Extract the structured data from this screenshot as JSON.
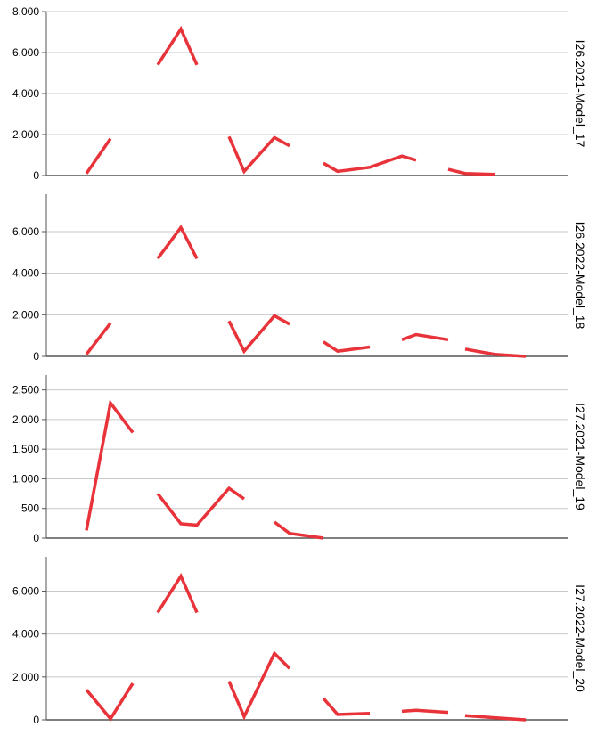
{
  "chart_data": {
    "type": "line",
    "line_color": "#e8333a",
    "grid": true,
    "panels": [
      {
        "label": "I26.2021-Model_17",
        "ylim": [
          0,
          8000
        ],
        "yticks": [
          0,
          2000,
          4000,
          6000,
          8000
        ],
        "tick_labels": [
          "0",
          "2,000",
          "4,000",
          "6,000",
          "8,000"
        ],
        "segments": [
          [
            [
              0,
              100
            ],
            [
              1,
              1800
            ]
          ],
          [
            [
              3,
              5400
            ],
            [
              4,
              7150
            ],
            [
              5,
              5400
            ]
          ],
          [
            [
              6,
              1900
            ],
            [
              7,
              200
            ],
            [
              8,
              1850
            ],
            [
              9,
              1450
            ]
          ],
          [
            [
              10,
              600
            ],
            [
              11,
              200
            ],
            [
              12,
              400
            ],
            [
              13,
              950
            ],
            [
              14,
              750
            ]
          ],
          [
            [
              15,
              300
            ],
            [
              16,
              100
            ],
            [
              17,
              50
            ]
          ]
        ]
      },
      {
        "label": "I26.2022-Model_18",
        "ylim": [
          0,
          7800
        ],
        "yticks": [
          0,
          2000,
          4000,
          6000
        ],
        "tick_labels": [
          "0",
          "2,000",
          "4,000",
          "6,000"
        ],
        "segments": [
          [
            [
              0,
              100
            ],
            [
              1,
              1600
            ]
          ],
          [
            [
              3,
              4700
            ],
            [
              4,
              6200
            ],
            [
              5,
              4700
            ]
          ],
          [
            [
              6,
              1700
            ],
            [
              7,
              250
            ],
            [
              8,
              1950
            ],
            [
              9,
              1550
            ]
          ],
          [
            [
              10,
              700
            ],
            [
              11,
              250
            ],
            [
              12,
              450
            ]
          ],
          [
            [
              13,
              800
            ],
            [
              14,
              1050
            ],
            [
              15,
              800
            ]
          ],
          [
            [
              16,
              350
            ],
            [
              17,
              100
            ],
            [
              18,
              0
            ]
          ]
        ]
      },
      {
        "label": "I27.2021-Model_19",
        "ylim": [
          0,
          2750
        ],
        "yticks": [
          0,
          500,
          1000,
          1500,
          2000,
          2500
        ],
        "tick_labels": [
          "0",
          "500",
          "1,000",
          "1,500",
          "2,000",
          "2,500"
        ],
        "segments": [
          [
            [
              0,
              130
            ],
            [
              1,
              2280
            ],
            [
              2,
              1780
            ]
          ],
          [
            [
              3,
              750
            ],
            [
              4,
              240
            ],
            [
              5,
              220
            ],
            [
              6,
              840
            ],
            [
              7,
              660
            ]
          ],
          [
            [
              8,
              270
            ],
            [
              9,
              80
            ],
            [
              10,
              0
            ]
          ]
        ]
      },
      {
        "label": "I27.2022-Model_20",
        "ylim": [
          0,
          7600
        ],
        "yticks": [
          0,
          2000,
          4000,
          6000
        ],
        "tick_labels": [
          "0",
          "2,000",
          "4,000",
          "6,000"
        ],
        "segments": [
          [
            [
              0,
              1400
            ],
            [
              1,
              50
            ],
            [
              2,
              1700
            ]
          ],
          [
            [
              3,
              5000
            ],
            [
              4,
              6700
            ],
            [
              5,
              5000
            ]
          ],
          [
            [
              6,
              1800
            ],
            [
              7,
              150
            ],
            [
              8,
              3100
            ],
            [
              9,
              2400
            ]
          ],
          [
            [
              10,
              1000
            ],
            [
              11,
              250
            ],
            [
              12,
              300
            ]
          ],
          [
            [
              13,
              400
            ],
            [
              14,
              450
            ],
            [
              15,
              350
            ]
          ],
          [
            [
              16,
              200
            ],
            [
              17,
              100
            ],
            [
              18,
              0
            ]
          ]
        ]
      }
    ]
  }
}
